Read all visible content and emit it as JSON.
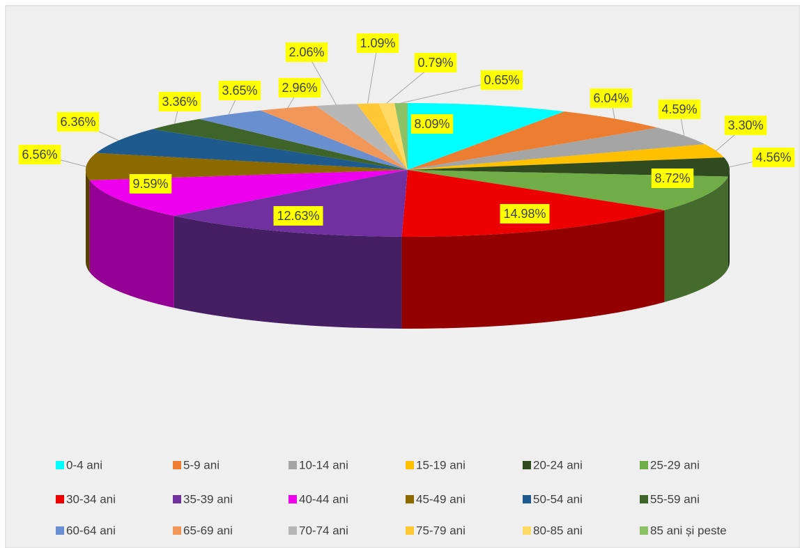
{
  "chart_data": {
    "type": "pie",
    "categories": [
      "0-4 ani",
      "5-9 ani",
      "10-14 ani",
      "15-19 ani",
      "20-24 ani",
      "25-29 ani",
      "30-34 ani",
      "35-39 ani",
      "40-44 ani",
      "45-49 ani",
      "50-54 ani",
      "55-59 ani",
      "60-64 ani",
      "65-69 ani",
      "70-74 ani",
      "75-79 ani",
      "80-85 ani",
      "85 ani și peste"
    ],
    "values": [
      8.09,
      6.04,
      4.59,
      3.3,
      4.56,
      8.72,
      14.98,
      12.63,
      9.59,
      6.56,
      6.36,
      3.36,
      3.65,
      2.96,
      2.06,
      1.09,
      0.79,
      0.65
    ],
    "value_labels": [
      "8.09%",
      "6.04%",
      "4.59%",
      "3.30%",
      "4.56%",
      "8.72%",
      "14.98%",
      "12.63%",
      "9.59%",
      "6.56%",
      "6.36%",
      "3.36%",
      "3.65%",
      "2.96%",
      "2.06%",
      "1.09%",
      "0.79%",
      "0.65%"
    ],
    "colors": [
      "#00ffff",
      "#ed7d31",
      "#a5a5a5",
      "#ffc000",
      "#2f4b1f",
      "#70ad47",
      "#ee0000",
      "#7030a0",
      "#ee00ee",
      "#8c6a00",
      "#1f5a8e",
      "#3f6429",
      "#6a8fd0",
      "#f1975a",
      "#b7b7b7",
      "#ffc733",
      "#ffd966",
      "#8cc168"
    ],
    "legend": "bottom"
  }
}
